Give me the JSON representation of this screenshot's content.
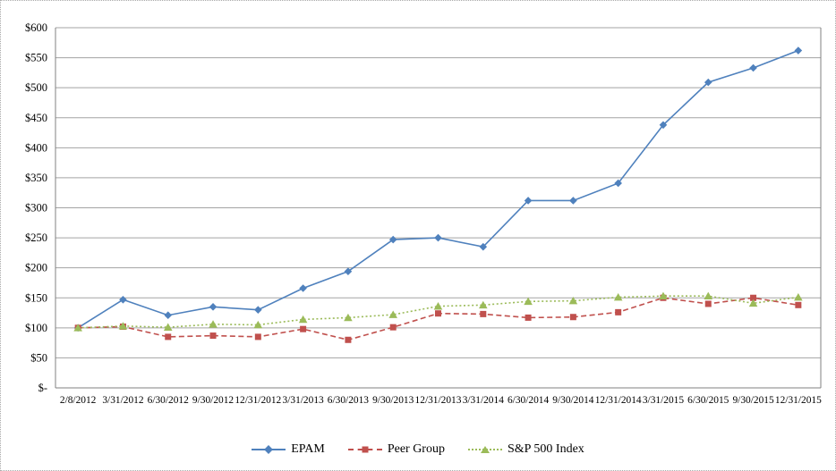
{
  "chart_data": {
    "type": "line",
    "title": "",
    "x_categories": [
      "2/8/2012",
      "3/31/2012",
      "6/30/2012",
      "9/30/2012",
      "12/31/2012",
      "3/31/2013",
      "6/30/2013",
      "9/30/2013",
      "12/31/2013",
      "3/31/2014",
      "6/30/2014",
      "9/30/2014",
      "12/31/2014",
      "3/31/2015",
      "6/30/2015",
      "9/30/2015",
      "12/31/2015"
    ],
    "series": [
      {
        "name": "EPAM",
        "color": "#4F81BD",
        "marker": "diamond",
        "line_style": "solid",
        "values": [
          100,
          147,
          121,
          135,
          130,
          166,
          194,
          247,
          250,
          235,
          312,
          312,
          341,
          438,
          509,
          533,
          562
        ]
      },
      {
        "name": "Peer Group",
        "color": "#C0504D",
        "marker": "square",
        "line_style": "dashed",
        "values": [
          100,
          102,
          85,
          87,
          85,
          98,
          80,
          101,
          124,
          123,
          117,
          118,
          126,
          150,
          140,
          150,
          138
        ]
      },
      {
        "name": "S&P 500 Index",
        "color": "#9BBB59",
        "marker": "triangle",
        "line_style": "dotted",
        "values": [
          100,
          103,
          101,
          106,
          105,
          114,
          117,
          122,
          136,
          138,
          144,
          145,
          151,
          153,
          153,
          141,
          151
        ]
      }
    ],
    "y_axis": {
      "min": 0,
      "max": 600,
      "step": 50,
      "tick_labels": [
        "$-",
        "$50",
        "$100",
        "$150",
        "$200",
        "$250",
        "$300",
        "$350",
        "$400",
        "$450",
        "$500",
        "$550",
        "$600"
      ]
    },
    "legend_position": "bottom",
    "grid": true,
    "gridline_color": "#a3a3a3",
    "axis_color": "#808080"
  }
}
